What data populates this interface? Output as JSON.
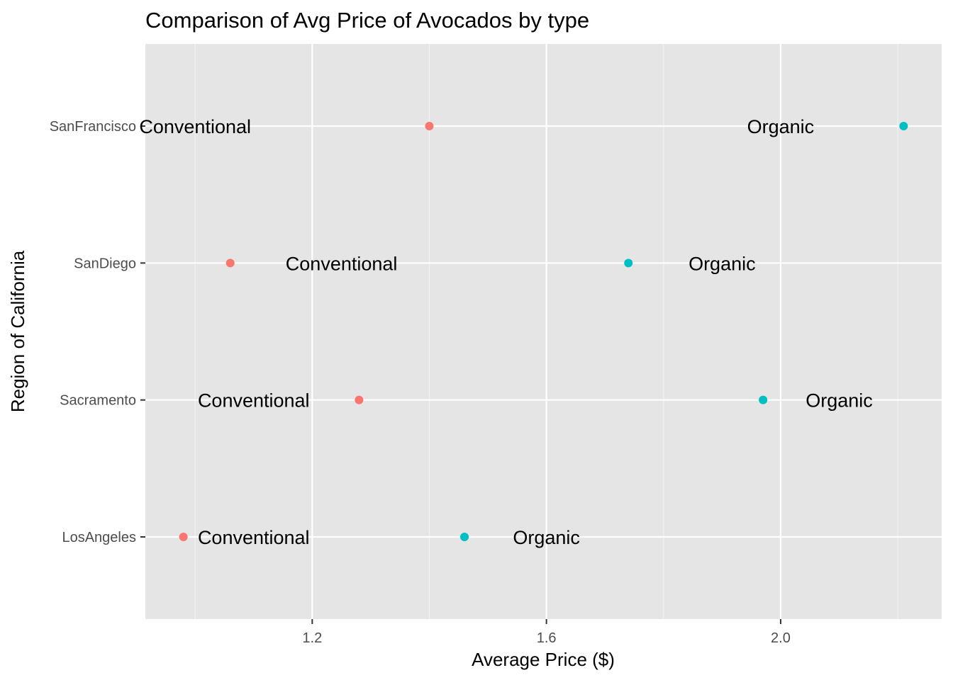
{
  "chart_data": {
    "type": "scatter",
    "title": "Comparison of Avg Price of Avocados by type",
    "xlabel": "Average Price ($)",
    "ylabel": "Region of California",
    "xlim": [
      0.915,
      2.275
    ],
    "x_ticks": [
      1.2,
      1.6,
      2.0
    ],
    "x_tick_labels": [
      "1.2",
      "1.6",
      "2.0"
    ],
    "x_minor_ticks": [
      1.0,
      1.4,
      1.8,
      2.2
    ],
    "categories": [
      "LosAngeles",
      "Sacramento",
      "SanDiego",
      "SanFrancisco"
    ],
    "grid": true,
    "legend": "none",
    "series": [
      {
        "name": "Conventional",
        "color": "#F8766D",
        "values": [
          0.98,
          1.28,
          1.06,
          1.4
        ],
        "label_text": "Conventional",
        "label_x": [
          1.1,
          1.1,
          1.25,
          1.0
        ]
      },
      {
        "name": "Organic",
        "color": "#00BFC4",
        "values": [
          1.46,
          1.97,
          1.74,
          2.21
        ],
        "label_text": "Organic",
        "label_x": [
          1.6,
          2.1,
          1.9,
          2.0
        ]
      }
    ]
  }
}
